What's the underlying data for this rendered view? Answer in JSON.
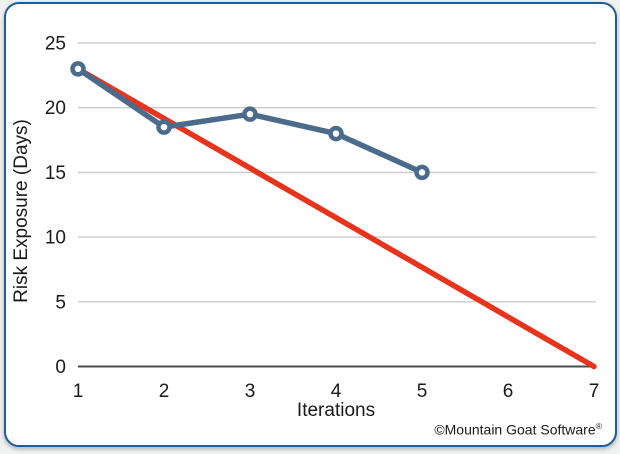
{
  "page": {
    "background_color": "#f0f1f1"
  },
  "frame": {
    "border_color": "#1e5c9e",
    "fill_color": "#ffffff"
  },
  "chart_data": {
    "type": "line",
    "title": "",
    "xlabel": "Iterations",
    "ylabel": "Risk Exposure (Days)",
    "xlim": [
      1,
      7
    ],
    "ylim": [
      0,
      25
    ],
    "x_ticks": [
      1,
      2,
      3,
      4,
      5,
      6,
      7
    ],
    "y_ticks": [
      0,
      5,
      10,
      15,
      20,
      25
    ],
    "grid": "horizontal",
    "grid_color": "#cccccc",
    "axis_color": "#4d4d4d",
    "legend": "none",
    "series": [
      {
        "name": "planned-risk-burndown",
        "color": "#e8341c",
        "marker": false,
        "x": [
          1,
          7
        ],
        "y": [
          23,
          0
        ]
      },
      {
        "name": "actual-risk-exposure",
        "color": "#4a6b8c",
        "marker": true,
        "marker_fill": "#ffffff",
        "x": [
          1,
          2,
          3,
          4,
          5
        ],
        "y": [
          23,
          18.5,
          19.5,
          18,
          15
        ]
      }
    ]
  },
  "footer": {
    "copyright_text": "©Mountain Goat Software",
    "registered_mark": "®"
  }
}
